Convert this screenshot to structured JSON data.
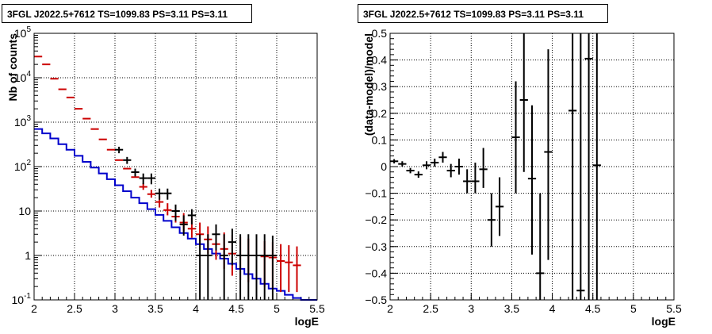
{
  "chart_data": [
    {
      "type": "histogram",
      "title": "3FGL J2022.5+7612 TS=1099.83 PS=3.11 PS=3.11",
      "xlabel": "logE",
      "ylabel": "Nb of counts",
      "xlim": [
        2,
        5.5
      ],
      "ylim": [
        0.1,
        100000
      ],
      "yscale": "log",
      "grid": true,
      "x_ticks": [
        "2",
        "2.5",
        "3",
        "3.5",
        "4",
        "4.5",
        "5",
        "5.5"
      ],
      "y_ticks": [
        "10^-1",
        "1",
        "10",
        "10^2",
        "10^3",
        "10^4",
        "10^5"
      ],
      "bin_edges": [
        2.0,
        2.1,
        2.2,
        2.3,
        2.4,
        2.5,
        2.6,
        2.7,
        2.8,
        2.9,
        3.0,
        3.1,
        3.2,
        3.3,
        3.4,
        3.5,
        3.6,
        3.7,
        3.8,
        3.9,
        4.0,
        4.1,
        4.2,
        4.3,
        4.4,
        4.5,
        4.6,
        4.7,
        4.8,
        4.9,
        5.0,
        5.1,
        5.2,
        5.3,
        5.4,
        5.5
      ],
      "series": [
        {
          "kind": "step",
          "color": "#0000cc",
          "values": [
            700,
            560,
            430,
            320,
            240,
            175,
            128,
            95,
            70,
            52,
            38,
            28,
            20,
            15,
            11,
            8.2,
            6.0,
            4.3,
            3.2,
            2.4,
            1.8,
            1.4,
            1.1,
            0.85,
            0.65,
            0.5,
            0.38,
            0.3,
            0.23,
            0.18,
            0.16,
            0.13,
            0.11,
            0.1,
            0.1
          ]
        },
        {
          "kind": "error-bars",
          "color": "#cc0000",
          "x": [
            2.05,
            2.15,
            2.25,
            2.35,
            2.45,
            2.55,
            2.65,
            2.75,
            2.85,
            2.95,
            3.05,
            3.15,
            3.25,
            3.35,
            3.45,
            3.55,
            3.65,
            3.75,
            3.85,
            3.95,
            4.05,
            4.15,
            4.25,
            4.35,
            4.45,
            4.55,
            4.65,
            4.75,
            4.85,
            4.95,
            5.05,
            5.15,
            5.25
          ],
          "y": [
            30000,
            20000,
            9500,
            5500,
            3600,
            2000,
            1200,
            700,
            410,
            240,
            140,
            90,
            58,
            35,
            24,
            16,
            10.5,
            7.5,
            5.5,
            4.0,
            3.0,
            2.3,
            1.8,
            1.4,
            1.1,
            1.0,
            1.0,
            1.0,
            0.95,
            0.9,
            0.75,
            0.7,
            0.6
          ],
          "y_low": [
            null,
            null,
            null,
            null,
            null,
            null,
            null,
            null,
            null,
            null,
            null,
            null,
            null,
            30,
            20,
            12,
            8,
            5.5,
            3.5,
            2.5,
            1.7,
            1.1,
            0.8,
            0.5,
            0.35,
            0.28,
            0.25,
            0.22,
            0.2,
            0.18,
            0.15,
            0.15,
            0.15
          ],
          "y_high": [
            null,
            null,
            null,
            null,
            null,
            null,
            null,
            null,
            null,
            null,
            null,
            null,
            null,
            42,
            30,
            22,
            15,
            11,
            9,
            7,
            5.5,
            4.5,
            3.8,
            3.3,
            2.9,
            2.6,
            2.4,
            2.2,
            2.1,
            2.0,
            1.8,
            1.7,
            1.6
          ]
        },
        {
          "kind": "error-bars",
          "color": "#000000",
          "x": [
            3.05,
            3.15,
            3.25,
            3.35,
            3.45,
            3.55,
            3.65,
            3.75,
            3.85,
            3.95,
            4.05,
            4.15,
            4.25,
            4.35,
            4.45,
            4.55,
            4.65,
            4.75,
            4.85,
            4.95
          ],
          "y": [
            240,
            140,
            75,
            55,
            55,
            25,
            25,
            10,
            5,
            8,
            1,
            1,
            3,
            1,
            2,
            1,
            1,
            1,
            1,
            1
          ],
          "y_low": [
            200,
            115,
            60,
            40,
            40,
            18,
            18,
            6,
            2.8,
            5,
            0.1,
            0.1,
            1.3,
            0.1,
            0.6,
            0.1,
            0.1,
            0.1,
            0.1,
            0.1
          ],
          "y_high": [
            280,
            165,
            90,
            70,
            70,
            32,
            32,
            14,
            8,
            11,
            3,
            3,
            5,
            3,
            4,
            3,
            3,
            3,
            3,
            2.8
          ]
        }
      ]
    },
    {
      "type": "scatter",
      "title": "3FGL J2022.5+7612 TS=1099.83 PS=3.11 PS=3.11",
      "xlabel": "logE",
      "ylabel": "(data-model)/model",
      "xlim": [
        2,
        5.5
      ],
      "ylim": [
        -0.5,
        0.5
      ],
      "grid": true,
      "x_ticks": [
        "2",
        "2.5",
        "3",
        "3.5",
        "4",
        "4.5",
        "5",
        "5.5"
      ],
      "y_ticks": [
        "−0.5",
        "−0.4",
        "−0.3",
        "−0.2",
        "−0.1",
        "0",
        "0.1",
        "0.2",
        "0.3",
        "0.4",
        "0.5"
      ],
      "series": [
        {
          "kind": "error-bars",
          "color": "#000000",
          "x": [
            2.05,
            2.15,
            2.25,
            2.35,
            2.45,
            2.55,
            2.65,
            2.75,
            2.85,
            2.95,
            3.05,
            3.15,
            3.25,
            3.35,
            3.55,
            3.65,
            3.75,
            3.85,
            3.95,
            4.25,
            4.35,
            4.45,
            4.55
          ],
          "y": [
            0.02,
            0.01,
            -0.015,
            -0.03,
            0.005,
            0.015,
            0.035,
            -0.015,
            0.0,
            -0.055,
            -0.055,
            -0.01,
            -0.2,
            -0.15,
            0.11,
            0.25,
            -0.045,
            -0.4,
            0.055,
            0.21,
            -0.465,
            0.405,
            0.005
          ],
          "y_low": [
            0.012,
            0.0,
            -0.025,
            -0.042,
            -0.01,
            0.0,
            0.015,
            -0.04,
            -0.03,
            -0.1,
            -0.1,
            -0.08,
            -0.3,
            -0.26,
            -0.1,
            -0.02,
            -0.33,
            -0.5,
            -0.35,
            -0.5,
            -0.5,
            -0.5,
            -0.5
          ],
          "y_high": [
            0.028,
            0.02,
            -0.005,
            -0.018,
            0.02,
            0.03,
            0.055,
            0.01,
            0.03,
            -0.01,
            0.015,
            0.07,
            -0.1,
            -0.04,
            0.32,
            0.5,
            0.23,
            -0.1,
            0.44,
            0.5,
            0.5,
            0.5,
            0.5
          ]
        }
      ]
    }
  ]
}
